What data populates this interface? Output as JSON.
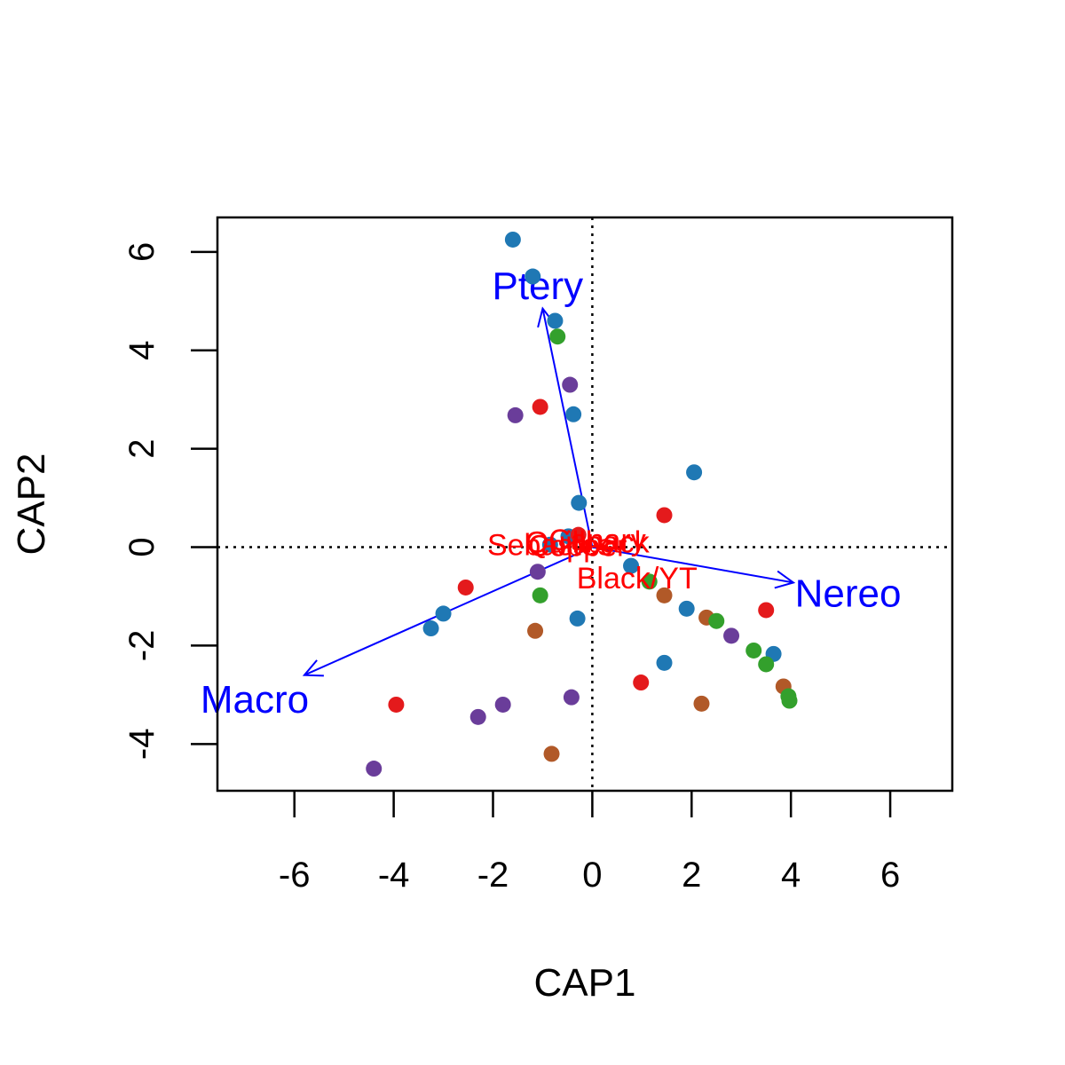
{
  "chart_data": {
    "type": "scatter",
    "title": "",
    "xlabel": "CAP1",
    "ylabel": "CAP2",
    "xlim": [
      -7.55,
      7.25
    ],
    "ylim": [
      -4.95,
      6.7
    ],
    "x_ticks": [
      -6,
      -4,
      -2,
      0,
      2,
      4,
      6
    ],
    "y_ticks": [
      -4,
      -2,
      0,
      2,
      4,
      6
    ],
    "grid": false,
    "reference_lines": [
      {
        "axis": "x",
        "value": 0,
        "style": "dotted"
      },
      {
        "axis": "y",
        "value": 0,
        "style": "dotted"
      }
    ],
    "colors": {
      "red": "#e41a1c",
      "blue": "#1f78b4",
      "green": "#33a02c",
      "purple": "#6a3d9a",
      "brown": "#b15928",
      "vector": "#0000ff",
      "centroid_label": "#ff0000"
    },
    "points": [
      {
        "x": -1.6,
        "y": 6.25,
        "color": "blue"
      },
      {
        "x": -1.2,
        "y": 5.5,
        "color": "blue"
      },
      {
        "x": -0.75,
        "y": 4.6,
        "color": "blue"
      },
      {
        "x": -0.7,
        "y": 4.28,
        "color": "green"
      },
      {
        "x": -0.45,
        "y": 3.3,
        "color": "purple"
      },
      {
        "x": -1.05,
        "y": 2.85,
        "color": "red"
      },
      {
        "x": -1.55,
        "y": 2.68,
        "color": "purple"
      },
      {
        "x": -0.38,
        "y": 2.7,
        "color": "blue"
      },
      {
        "x": 2.05,
        "y": 1.52,
        "color": "blue"
      },
      {
        "x": -0.27,
        "y": 0.9,
        "color": "blue"
      },
      {
        "x": 1.45,
        "y": 0.65,
        "color": "red"
      },
      {
        "x": -0.48,
        "y": 0.22,
        "color": "blue"
      },
      {
        "x": -0.28,
        "y": 0.25,
        "color": "red"
      },
      {
        "x": -0.85,
        "y": 0.05,
        "color": "blue"
      },
      {
        "x": 0.78,
        "y": -0.38,
        "color": "blue"
      },
      {
        "x": -1.1,
        "y": -0.5,
        "color": "purple"
      },
      {
        "x": 1.15,
        "y": -0.7,
        "color": "green"
      },
      {
        "x": 1.45,
        "y": -0.98,
        "color": "brown"
      },
      {
        "x": -2.55,
        "y": -0.82,
        "color": "red"
      },
      {
        "x": -1.05,
        "y": -0.98,
        "color": "green"
      },
      {
        "x": 1.9,
        "y": -1.25,
        "color": "blue"
      },
      {
        "x": 2.3,
        "y": -1.43,
        "color": "brown"
      },
      {
        "x": 2.5,
        "y": -1.5,
        "color": "green"
      },
      {
        "x": 3.5,
        "y": -1.28,
        "color": "red"
      },
      {
        "x": -3.0,
        "y": -1.35,
        "color": "blue"
      },
      {
        "x": -3.25,
        "y": -1.65,
        "color": "blue"
      },
      {
        "x": -0.3,
        "y": -1.45,
        "color": "blue"
      },
      {
        "x": -1.15,
        "y": -1.7,
        "color": "brown"
      },
      {
        "x": 2.8,
        "y": -1.8,
        "color": "purple"
      },
      {
        "x": 3.25,
        "y": -2.1,
        "color": "green"
      },
      {
        "x": 3.65,
        "y": -2.17,
        "color": "blue"
      },
      {
        "x": 1.45,
        "y": -2.35,
        "color": "blue"
      },
      {
        "x": 3.5,
        "y": -2.38,
        "color": "green"
      },
      {
        "x": 0.98,
        "y": -2.75,
        "color": "red"
      },
      {
        "x": 3.85,
        "y": -2.83,
        "color": "brown"
      },
      {
        "x": 3.95,
        "y": -3.03,
        "color": "green"
      },
      {
        "x": 3.97,
        "y": -3.12,
        "color": "green"
      },
      {
        "x": -0.42,
        "y": -3.05,
        "color": "purple"
      },
      {
        "x": 2.2,
        "y": -3.18,
        "color": "brown"
      },
      {
        "x": -3.95,
        "y": -3.2,
        "color": "red"
      },
      {
        "x": -1.8,
        "y": -3.2,
        "color": "purple"
      },
      {
        "x": -2.3,
        "y": -3.45,
        "color": "purple"
      },
      {
        "x": -0.82,
        "y": -4.2,
        "color": "brown"
      },
      {
        "x": -4.4,
        "y": -4.5,
        "color": "purple"
      }
    ],
    "vectors": [
      {
        "label": "Ptery",
        "x": -1.0,
        "y": 4.85,
        "label_x": -1.1,
        "label_y": 5.25
      },
      {
        "label": "Nereo",
        "x": 4.05,
        "y": -0.72,
        "label_x": 5.15,
        "label_y": -1.0
      },
      {
        "label": "Macro",
        "x": -5.8,
        "y": -2.6,
        "label_x": -6.8,
        "label_y": -3.15
      }
    ],
    "centroid_labels": [
      {
        "label": "Canary",
        "x": 0.1,
        "y": 0.1
      },
      {
        "label": "Copper",
        "x": -0.3,
        "y": -0.02
      },
      {
        "label": "Sebastes",
        "x": -0.85,
        "y": 0.0
      },
      {
        "label": "Quillback",
        "x": -0.1,
        "y": 0.05
      },
      {
        "label": "Black/YT",
        "x": 0.9,
        "y": -0.68
      }
    ]
  }
}
